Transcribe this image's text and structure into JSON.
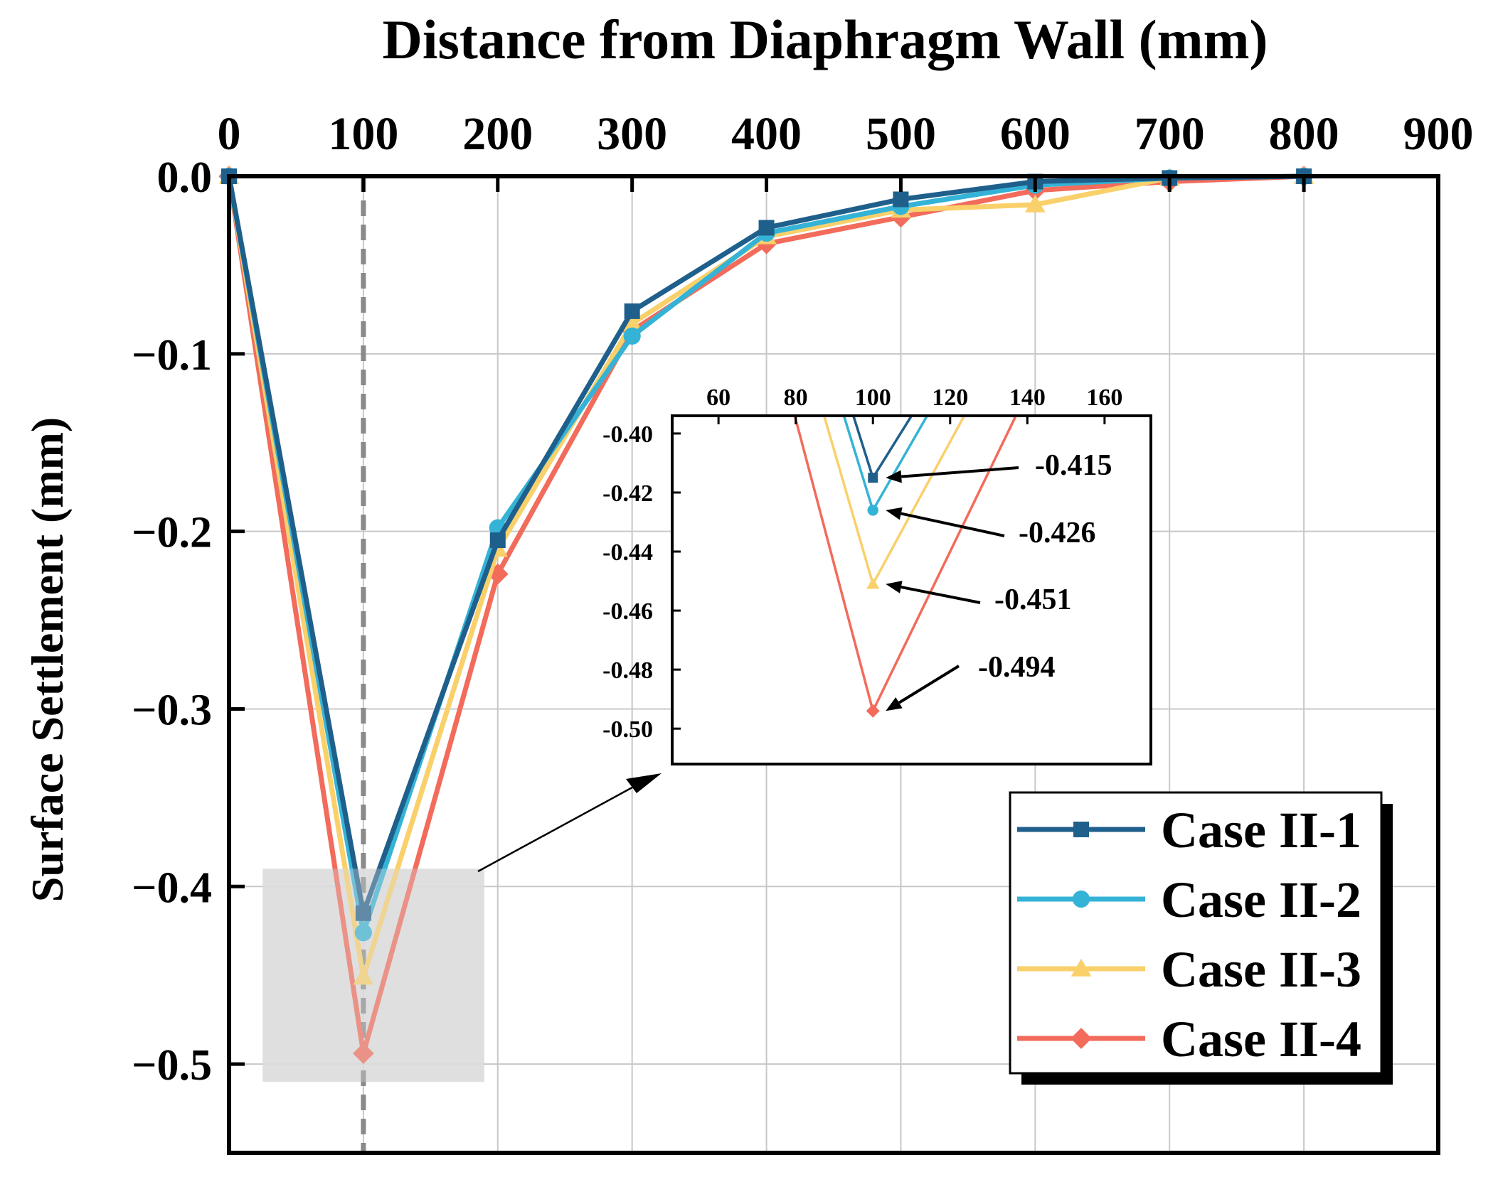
{
  "chart_data": {
    "type": "line",
    "title": "Distance from Diaphragm Wall (mm)",
    "xlabel": "Distance from Diaphragm Wall (mm)",
    "ylabel": "Surface Settlement (mm)",
    "xlim": [
      0,
      900
    ],
    "ylim": [
      -0.55,
      0.0
    ],
    "x_ticks": [
      "0",
      "100",
      "200",
      "300",
      "400",
      "500",
      "600",
      "700",
      "800",
      "900"
    ],
    "y_ticks": [
      "0.0",
      "−0.1",
      "−0.2",
      "−0.3",
      "−0.4",
      "−0.5"
    ],
    "grid": true,
    "x_axis_position": "top",
    "legend_position": "bottom-right",
    "x": [
      0,
      100,
      200,
      300,
      400,
      500,
      600,
      700,
      800
    ],
    "series": [
      {
        "name": "Case II-1",
        "marker": "square",
        "color": "#1f5f8b",
        "values": [
          0,
          -0.415,
          -0.205,
          -0.076,
          -0.029,
          -0.013,
          -0.003,
          -0.001,
          0
        ]
      },
      {
        "name": "Case II-2",
        "marker": "circle",
        "color": "#35b3d6",
        "values": [
          0,
          -0.426,
          -0.198,
          -0.09,
          -0.032,
          -0.017,
          -0.005,
          -0.001,
          0
        ]
      },
      {
        "name": "Case II-3",
        "marker": "triangle",
        "color": "#f9d06a",
        "values": [
          0,
          -0.451,
          -0.21,
          -0.083,
          -0.034,
          -0.019,
          -0.016,
          -0.001,
          0
        ]
      },
      {
        "name": "Case II-4",
        "marker": "diamond",
        "color": "#f26b5b",
        "values": [
          0,
          -0.494,
          -0.224,
          -0.087,
          -0.038,
          -0.023,
          -0.008,
          -0.003,
          0
        ]
      }
    ],
    "reference_line_x": 100,
    "highlight_region": {
      "x": [
        25,
        190
      ],
      "y": [
        -0.51,
        -0.39
      ]
    },
    "inset": {
      "xlim": [
        48,
        172
      ],
      "ylim": [
        -0.512,
        -0.394
      ],
      "x_ticks": [
        "60",
        "80",
        "100",
        "120",
        "140",
        "160"
      ],
      "y_ticks": [
        "-0.40",
        "-0.42",
        "-0.44",
        "-0.46",
        "-0.48",
        "-0.50"
      ],
      "annotations": [
        "-0.415",
        "-0.426",
        "-0.451",
        "-0.494"
      ]
    }
  }
}
